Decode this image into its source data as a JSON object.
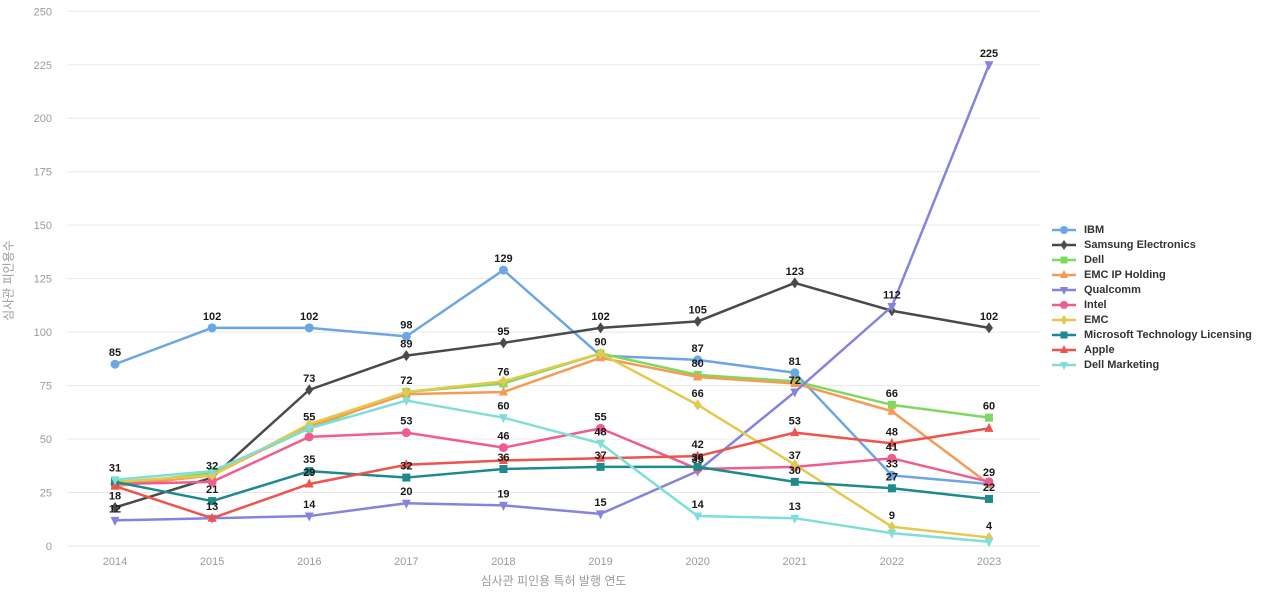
{
  "chart_data": {
    "type": "line",
    "title": "",
    "xlabel": "심사관 피인용 특허 발행 연도",
    "ylabel": "심사관 피인용수",
    "categories": [
      "2014",
      "2015",
      "2016",
      "2017",
      "2018",
      "2019",
      "2020",
      "2021",
      "2022",
      "2023"
    ],
    "ylim": [
      0,
      250
    ],
    "y_tick_step": 25,
    "grid": true,
    "legend_position": "right",
    "series": [
      {
        "name": "IBM",
        "color": "#6CA6E3",
        "marker": "circle",
        "values": [
          85,
          102,
          102,
          98,
          129,
          89,
          87,
          81,
          33,
          29
        ],
        "labels": [
          "85",
          "102",
          "102",
          "98",
          "129",
          "",
          "87",
          "81",
          "33",
          "29"
        ]
      },
      {
        "name": "Samsung Electronics",
        "color": "#4A4A4A",
        "marker": "diamond",
        "values": [
          18,
          32,
          73,
          89,
          95,
          102,
          105,
          123,
          110,
          102
        ],
        "labels": [
          "18",
          "32",
          "73",
          "89",
          "95",
          "102",
          "105",
          "123",
          "",
          "102"
        ]
      },
      {
        "name": "Dell",
        "color": "#7FD960",
        "marker": "square",
        "values": [
          29,
          34,
          55,
          72,
          76,
          90,
          80,
          77,
          66,
          60
        ],
        "labels": [
          "",
          "",
          "55",
          "72",
          "76",
          "",
          "80",
          "",
          "66",
          "60"
        ]
      },
      {
        "name": "EMC IP Holding",
        "color": "#F79B54",
        "marker": "triangle-up",
        "values": [
          28,
          33,
          56,
          71,
          72,
          88,
          79,
          76,
          63,
          29
        ],
        "labels": [
          "",
          "",
          "",
          "",
          "",
          "",
          "",
          "",
          "",
          ""
        ]
      },
      {
        "name": "Qualcomm",
        "color": "#8683DF",
        "marker": "triangle-down",
        "values": [
          12,
          13,
          14,
          20,
          19,
          15,
          35,
          72,
          112,
          225
        ],
        "labels": [
          "12",
          "",
          "14",
          "20",
          "19",
          "15",
          "35",
          "72",
          "112",
          "225"
        ]
      },
      {
        "name": "Intel",
        "color": "#EF5D8F",
        "marker": "circle",
        "values": [
          29,
          30,
          51,
          53,
          46,
          55,
          36,
          37,
          41,
          30
        ],
        "labels": [
          "",
          "",
          "",
          "53",
          "46",
          "55",
          "36",
          "37",
          "41",
          ""
        ]
      },
      {
        "name": "EMC",
        "color": "#E3C94E",
        "marker": "diamond",
        "values": [
          30,
          33,
          57,
          72,
          77,
          90,
          66,
          38,
          9,
          4
        ],
        "labels": [
          "",
          "",
          "",
          "",
          "",
          "90",
          "66",
          "",
          "9",
          "4"
        ]
      },
      {
        "name": "Microsoft Technology Licensing",
        "color": "#1E8A8C",
        "marker": "square",
        "values": [
          30,
          21,
          35,
          32,
          36,
          37,
          37,
          30,
          27,
          22
        ],
        "labels": [
          "",
          "21",
          "35",
          "32",
          "36",
          "37",
          "",
          "30",
          "27",
          "22"
        ]
      },
      {
        "name": "Apple",
        "color": "#ED544E",
        "marker": "triangle-up",
        "values": [
          28,
          13,
          29,
          38,
          40,
          41,
          42,
          53,
          48,
          55
        ],
        "labels": [
          "",
          "13",
          "29",
          "",
          "",
          "",
          "42",
          "53",
          "48",
          ""
        ]
      },
      {
        "name": "Dell Marketing",
        "color": "#7FDED8",
        "marker": "triangle-down",
        "values": [
          31,
          35,
          55,
          68,
          60,
          48,
          14,
          13,
          6,
          2
        ],
        "labels": [
          "31",
          "",
          "",
          "",
          "60",
          "48",
          "14",
          "13",
          "",
          ""
        ]
      }
    ]
  }
}
